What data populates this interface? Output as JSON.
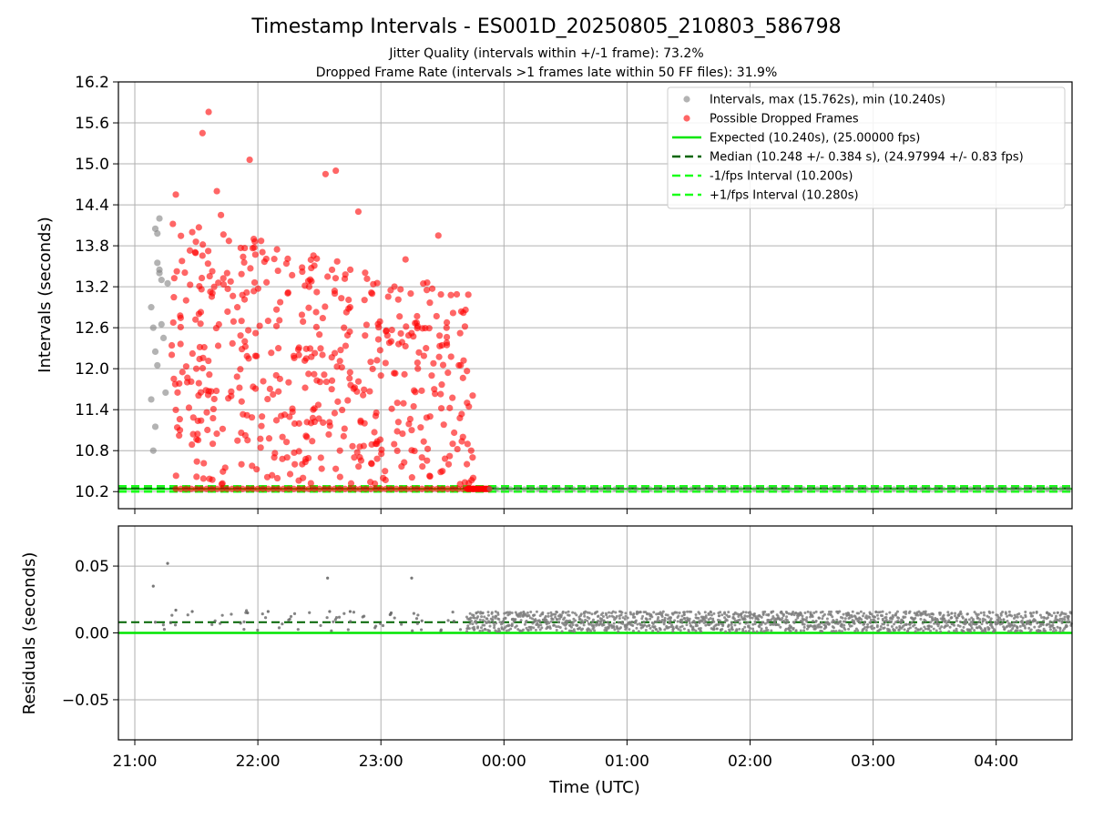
{
  "chart_data": [
    {
      "type": "scatter",
      "title": "Timestamp Intervals - ES001D_20250805_210803_586798",
      "subtitle_lines": [
        "Jitter Quality (intervals within +/-1 frame): 73.2%",
        "Dropped Frame Rate (intervals >1 frames late within 50 FF files): 31.9%"
      ],
      "xlabel": "",
      "ylabel": "Intervals (seconds)",
      "xlim": [
        "20:52",
        "04:37"
      ],
      "ylim": [
        9.95,
        16.2
      ],
      "y_ticks": [
        "10.2",
        "10.8",
        "11.4",
        "12.0",
        "12.6",
        "13.2",
        "13.8",
        "14.4",
        "15.0",
        "15.6",
        "16.2"
      ],
      "grid": true,
      "legend_position": "top-right",
      "legend": [
        {
          "label": "Intervals, max (15.762s), min (10.240s)",
          "kind": "marker",
          "color": "#808080"
        },
        {
          "label": "Possible Dropped Frames",
          "kind": "marker",
          "color": "#ff0000"
        },
        {
          "label": "Expected (10.240s), (25.00000 fps)",
          "kind": "solid",
          "color": "#00e600"
        },
        {
          "label": "Median (10.248 +/- 0.384 s), (24.97994 +/- 0.83 fps)",
          "kind": "dashed",
          "color": "#006400"
        },
        {
          "label": "-1/fps Interval (10.200s)",
          "kind": "dashed",
          "color": "#1aff1a"
        },
        {
          "label": "+1/fps Interval (10.280s)",
          "kind": "dashed",
          "color": "#1aff1a"
        }
      ],
      "reference_lines": {
        "expected": 10.24,
        "median": 10.248,
        "minus_one_fps": 10.2,
        "plus_one_fps": 10.28
      },
      "series": [
        {
          "name": "Intervals, max (15.762s), min (10.240s)",
          "color": "#808080",
          "points_time": [
            "21:08",
            "21:09",
            "21:10",
            "21:10",
            "21:11",
            "21:11",
            "21:12",
            "21:12",
            "21:13",
            "21:14",
            "21:15",
            "21:16",
            "21:08",
            "21:09",
            "21:11",
            "21:13",
            "21:10",
            "21:12"
          ],
          "points_value": [
            11.55,
            10.8,
            11.15,
            12.25,
            12.05,
            13.55,
            14.2,
            13.45,
            13.3,
            12.45,
            11.65,
            13.25,
            12.9,
            12.6,
            13.98,
            12.65,
            14.05,
            13.4
          ]
        },
        {
          "name": "Possible Dropped Frames",
          "color": "#ff0000",
          "points_time": [
            "21:20",
            "21:33",
            "21:36",
            "21:40",
            "21:42",
            "21:56",
            "21:58",
            "22:33",
            "22:38",
            "22:49",
            "23:12",
            "23:28",
            "21:25",
            "21:28",
            "21:45",
            "21:50",
            "22:05",
            "22:10",
            "22:15",
            "22:20",
            "22:25",
            "22:30",
            "22:42",
            "22:45",
            "22:55",
            "23:00",
            "23:05",
            "23:18",
            "23:22",
            "23:26",
            "23:32",
            "23:38",
            "23:42",
            "21:22",
            "21:30",
            "21:47",
            "22:02",
            "22:12",
            "22:27",
            "22:36",
            "22:52",
            "23:08",
            "23:15",
            "23:24",
            "23:35",
            "23:40",
            "21:38",
            "22:08",
            "22:18",
            "22:40",
            "22:58",
            "23:20",
            "23:30",
            "23:44",
            "21:52",
            "22:22",
            "22:47",
            "23:02",
            "23:33",
            "23:45"
          ],
          "points_value": [
            14.55,
            15.45,
            15.76,
            14.6,
            14.25,
            15.06,
            13.9,
            14.85,
            14.9,
            14.3,
            13.6,
            13.95,
            13.0,
            14.0,
            13.4,
            12.9,
            12.7,
            12.3,
            11.8,
            12.2,
            13.2,
            12.5,
            12.6,
            12.9,
            12.1,
            11.9,
            12.4,
            12.0,
            12.3,
            11.7,
            12.6,
            12.05,
            11.5,
            11.1,
            12.0,
            11.6,
            11.3,
            11.0,
            11.4,
            11.7,
            11.2,
            11.5,
            11.1,
            11.3,
            10.9,
            11.0,
            10.9,
            10.7,
            10.6,
            10.8,
            10.9,
            10.7,
            10.5,
            10.8,
            10.6,
            10.4,
            10.7,
            10.5,
            10.6,
            10.4
          ]
        }
      ]
    },
    {
      "type": "scatter",
      "xlabel": "Time (UTC)",
      "ylabel": "Residuals (seconds)",
      "xlim": [
        "20:52",
        "04:37"
      ],
      "ylim": [
        -0.08,
        0.08
      ],
      "y_ticks": [
        "−0.05",
        "0.00",
        "0.05"
      ],
      "x_ticks": [
        "21:00",
        "22:00",
        "23:00",
        "00:00",
        "01:00",
        "02:00",
        "03:00",
        "04:00"
      ],
      "grid": true,
      "reference_lines": {
        "zero": 0.0,
        "median": 0.008
      },
      "series": [
        {
          "name": "Residuals",
          "color": "#808080",
          "points_time": [
            "21:09",
            "21:16",
            "22:34",
            "23:15",
            "21:10",
            "21:20",
            "21:28",
            "21:55",
            "22:05",
            "22:35",
            "22:45",
            "23:05",
            "23:20"
          ],
          "points_value": [
            0.035,
            0.052,
            0.041,
            0.041,
            0.008,
            0.017,
            0.016,
            0.015,
            0.016,
            0.016,
            0.016,
            0.015,
            0.009
          ]
        }
      ],
      "dense_band": {
        "from": "23:42",
        "to": "04:37",
        "min": 0.001,
        "max": 0.016
      }
    }
  ]
}
